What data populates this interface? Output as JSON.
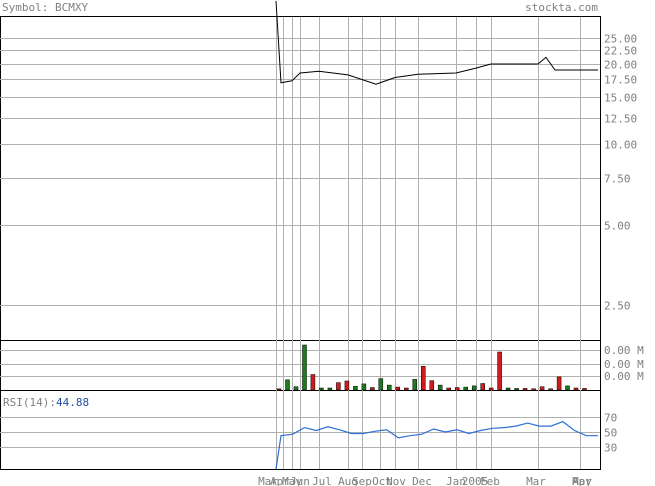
{
  "header": {
    "symbol_label": "Symbol: BCMXY",
    "brand": "stockta.com"
  },
  "colors": {
    "background": "#ffffff",
    "frame": "#000000",
    "grid": "#b0b0b0",
    "text": "#808080",
    "price_line": "#000000",
    "volume_up": "#1e7a1e",
    "volume_down": "#d01c1c",
    "rsi_line": "#2f6fd6",
    "rsi_value": "#1f4fa0"
  },
  "chart_data": [
    {
      "type": "line",
      "name": "price",
      "scale": "log",
      "y_ticks": [
        "25.00",
        "22.50",
        "20.00",
        "17.50",
        "15.00",
        "12.50",
        "10.00",
        "7.50",
        "5.00",
        "2.50"
      ],
      "grid": true,
      "points": [
        {
          "x": "Apr",
          "y": 50.0
        },
        {
          "x": "Apr",
          "y": 17.0
        },
        {
          "x": "May",
          "y": 17.3
        },
        {
          "x": "Jun",
          "y": 18.5
        },
        {
          "x": "Jul",
          "y": 18.8
        },
        {
          "x": "Aug",
          "y": 18.2
        },
        {
          "x": "Sep",
          "y": 16.8
        },
        {
          "x": "Oct",
          "y": 17.8
        },
        {
          "x": "Nov",
          "y": 18.3
        },
        {
          "x": "Dec",
          "y": 18.5
        },
        {
          "x": "Jan",
          "y": 19.3
        },
        {
          "x": "2005",
          "y": 20.0
        },
        {
          "x": "Mar",
          "y": 20.0
        },
        {
          "x": "Apr",
          "y": 21.2
        },
        {
          "x": "Apr",
          "y": 19.0
        },
        {
          "x": "May",
          "y": 19.0
        }
      ]
    },
    {
      "type": "bar",
      "name": "volume",
      "y_ticks": [
        "0.00 M",
        "0.00 M",
        "0.00 M"
      ],
      "bars": [
        {
          "color": "down",
          "value": 0.3
        },
        {
          "color": "up",
          "value": 2.5
        },
        {
          "color": "up",
          "value": 0.8
        },
        {
          "color": "up",
          "value": 11.0
        },
        {
          "color": "down",
          "value": 3.8
        },
        {
          "color": "up",
          "value": 0.5
        },
        {
          "color": "up",
          "value": 0.5
        },
        {
          "color": "down",
          "value": 1.8
        },
        {
          "color": "down",
          "value": 2.2
        },
        {
          "color": "up",
          "value": 0.9
        },
        {
          "color": "up",
          "value": 1.5
        },
        {
          "color": "down",
          "value": 0.6
        },
        {
          "color": "up",
          "value": 2.8
        },
        {
          "color": "up",
          "value": 1.2
        },
        {
          "color": "down",
          "value": 0.7
        },
        {
          "color": "down",
          "value": 0.5
        },
        {
          "color": "up",
          "value": 2.6
        },
        {
          "color": "down",
          "value": 5.8
        },
        {
          "color": "down",
          "value": 2.3
        },
        {
          "color": "up",
          "value": 1.2
        },
        {
          "color": "down",
          "value": 0.5
        },
        {
          "color": "down",
          "value": 0.6
        },
        {
          "color": "up",
          "value": 0.7
        },
        {
          "color": "up",
          "value": 1.0
        },
        {
          "color": "down",
          "value": 1.6
        },
        {
          "color": "down",
          "value": 0.5
        },
        {
          "color": "down",
          "value": 9.3
        },
        {
          "color": "up",
          "value": 0.5
        },
        {
          "color": "up",
          "value": 0.4
        },
        {
          "color": "down",
          "value": 0.4
        },
        {
          "color": "down",
          "value": 0.3
        },
        {
          "color": "down",
          "value": 0.8
        },
        {
          "color": "down",
          "value": 0.3
        },
        {
          "color": "down",
          "value": 3.2
        },
        {
          "color": "up",
          "value": 1.0
        },
        {
          "color": "down",
          "value": 0.5
        },
        {
          "color": "down",
          "value": 0.4
        }
      ]
    },
    {
      "type": "line",
      "name": "rsi",
      "label": "RSI(14):",
      "current_value": "44.88",
      "y_ticks": [
        "70",
        "50",
        "30"
      ],
      "ylim": [
        0,
        100
      ],
      "points": [
        {
          "x": "Apr",
          "y": 0
        },
        {
          "x": "Apr",
          "y": 45
        },
        {
          "x": "May",
          "y": 47
        },
        {
          "x": "Jun",
          "y": 56
        },
        {
          "x": "Jun",
          "y": 52
        },
        {
          "x": "Jul",
          "y": 57
        },
        {
          "x": "Jul",
          "y": 53
        },
        {
          "x": "Jul",
          "y": 48
        },
        {
          "x": "Aug",
          "y": 48
        },
        {
          "x": "Aug",
          "y": 51
        },
        {
          "x": "Sep",
          "y": 53
        },
        {
          "x": "Sep",
          "y": 42
        },
        {
          "x": "Oct",
          "y": 45
        },
        {
          "x": "Oct",
          "y": 47
        },
        {
          "x": "Nov",
          "y": 54
        },
        {
          "x": "Nov",
          "y": 50
        },
        {
          "x": "Nov",
          "y": 53
        },
        {
          "x": "Dec",
          "y": 48
        },
        {
          "x": "Dec",
          "y": 52
        },
        {
          "x": "Jan",
          "y": 55
        },
        {
          "x": "Jan",
          "y": 56
        },
        {
          "x": "2005",
          "y": 58
        },
        {
          "x": "2005",
          "y": 62
        },
        {
          "x": "Mar",
          "y": 58
        },
        {
          "x": "Apr",
          "y": 58
        },
        {
          "x": "Apr",
          "y": 64
        },
        {
          "x": "Apr",
          "y": 52
        },
        {
          "x": "Apr",
          "y": 45
        },
        {
          "x": "May",
          "y": 45
        }
      ]
    }
  ],
  "x_axis_labels": [
    "Mar",
    "Apr",
    "May",
    "Jun",
    "Jul",
    "Aug",
    "Sep",
    "Oct",
    "Nov",
    "Dec",
    "Jan",
    "2005",
    "Feb",
    "Mar",
    "Apr",
    "May"
  ]
}
